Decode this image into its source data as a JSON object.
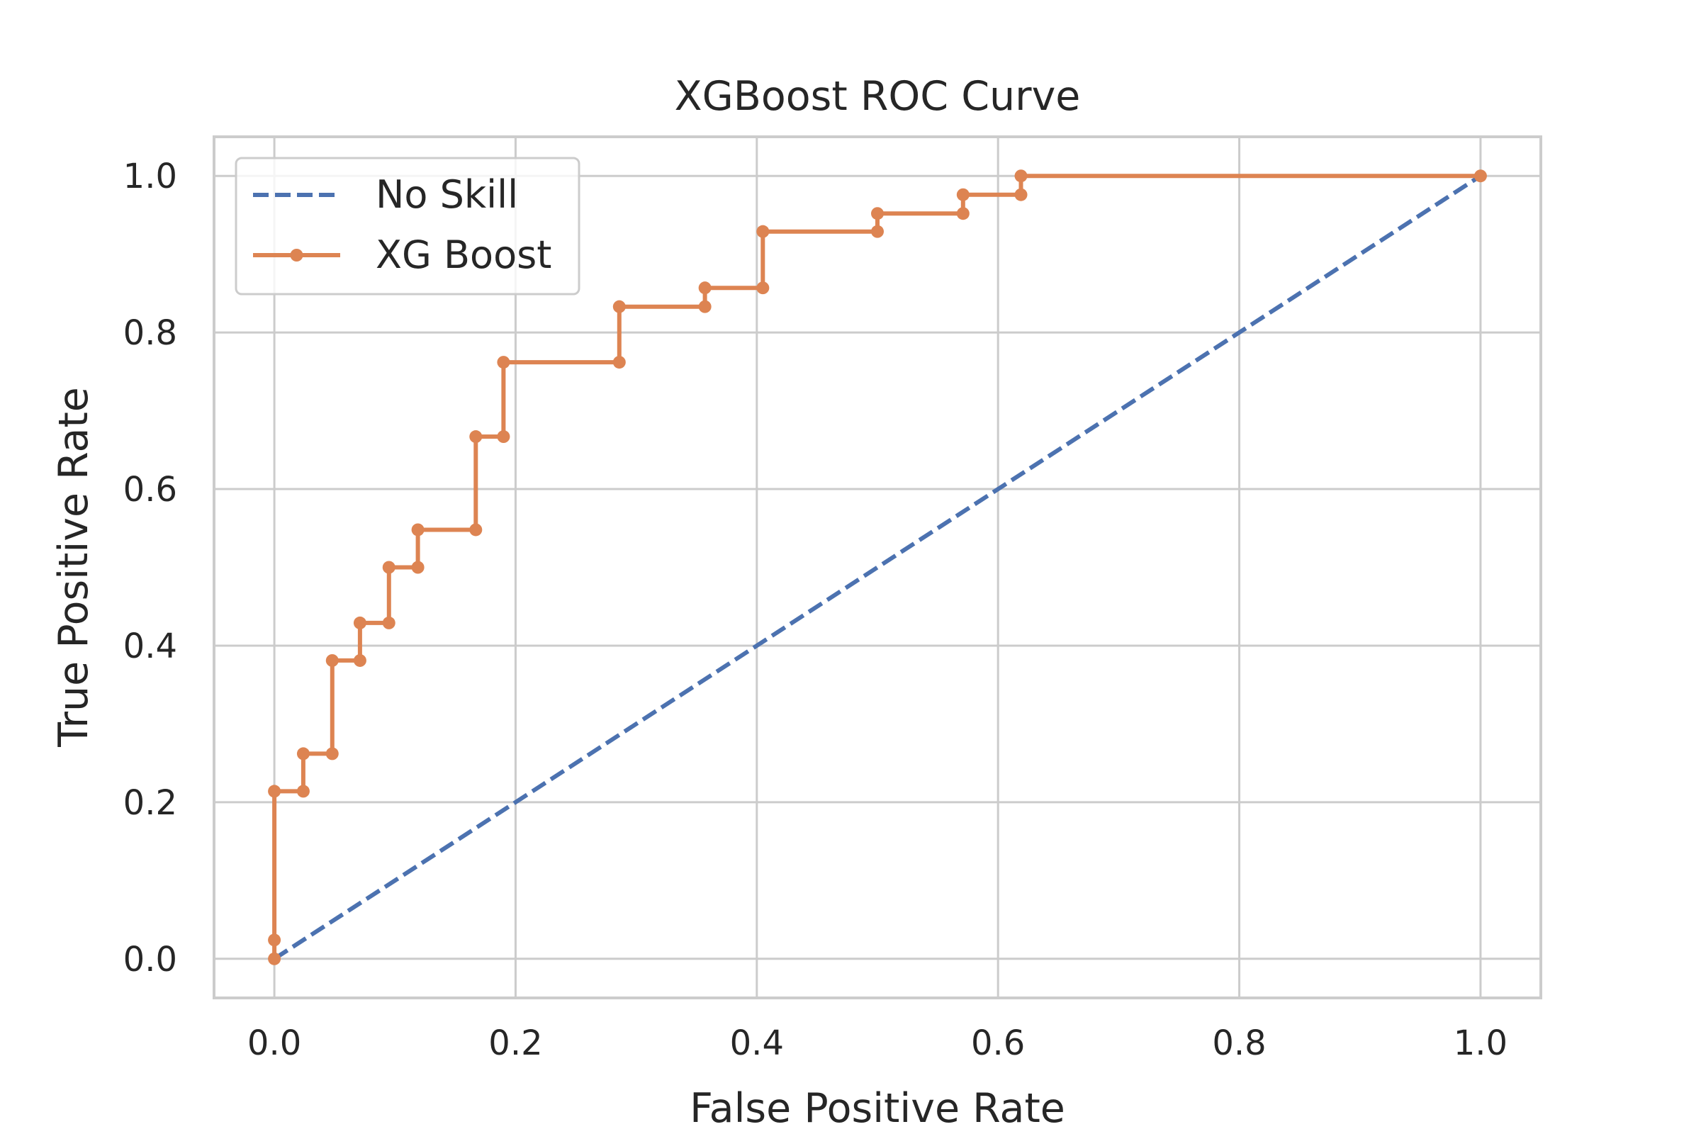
{
  "colors": {
    "no_skill": "#4c72b0",
    "xg_boost": "#dd8452",
    "grid": "#cccccc",
    "frame": "#cccccc",
    "text": "#262626"
  },
  "chart_data": {
    "type": "line",
    "title": "XGBoost ROC Curve",
    "xlabel": "False Positive Rate",
    "ylabel": "True Positive Rate",
    "xlim": [
      -0.05,
      1.05
    ],
    "ylim": [
      -0.05,
      1.05
    ],
    "xticks": [
      "0.0",
      "0.2",
      "0.4",
      "0.6",
      "0.8",
      "1.0"
    ],
    "yticks": [
      "0.0",
      "0.2",
      "0.4",
      "0.6",
      "0.8",
      "1.0"
    ],
    "grid": true,
    "legend_position": "upper-left",
    "series": [
      {
        "name": "No Skill",
        "style": "dashed",
        "markers": false,
        "x": [
          0,
          1
        ],
        "y": [
          0,
          1
        ]
      },
      {
        "name": "XG Boost",
        "style": "solid",
        "markers": true,
        "x": [
          0,
          0,
          0,
          0.024,
          0.024,
          0.048,
          0.048,
          0.071,
          0.071,
          0.095,
          0.095,
          0.119,
          0.119,
          0.167,
          0.167,
          0.19,
          0.19,
          0.286,
          0.286,
          0.357,
          0.357,
          0.405,
          0.405,
          0.5,
          0.5,
          0.571,
          0.571,
          0.619,
          0.619,
          1.0
        ],
        "y": [
          0,
          0.024,
          0.214,
          0.214,
          0.262,
          0.262,
          0.381,
          0.381,
          0.429,
          0.429,
          0.5,
          0.5,
          0.548,
          0.548,
          0.667,
          0.667,
          0.762,
          0.762,
          0.833,
          0.833,
          0.857,
          0.857,
          0.929,
          0.929,
          0.952,
          0.952,
          0.976,
          0.976,
          1.0,
          1.0
        ]
      }
    ]
  }
}
